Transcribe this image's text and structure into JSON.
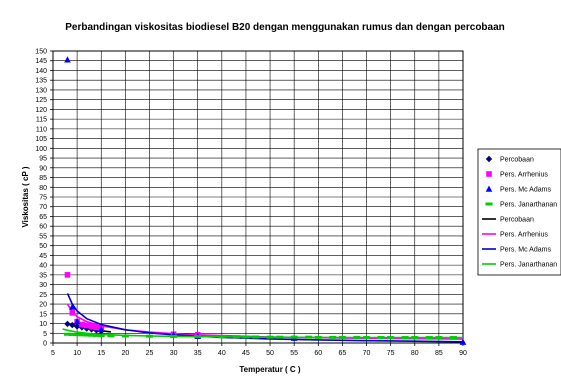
{
  "chart_data": {
    "type": "line",
    "title": "Perbandingan viskositas biodiesel B20 dengan menggunakan rumus dan dengan percobaan",
    "xlabel": "Temperatur ( C )",
    "ylabel": "Viskositas ( cP )",
    "xlim": [
      5,
      90
    ],
    "ylim": [
      0,
      150
    ],
    "x_ticks": [
      "5",
      "10",
      "15",
      "20",
      "25",
      "30",
      "35",
      "40",
      "45",
      "50",
      "55",
      "60",
      "65",
      "70",
      "75",
      "80",
      "85",
      "90"
    ],
    "y_ticks": [
      "0",
      "5",
      "10",
      "15",
      "20",
      "25",
      "30",
      "35",
      "40",
      "45",
      "50",
      "55",
      "60",
      "65",
      "70",
      "75",
      "80",
      "85",
      "90",
      "95",
      "100",
      "105",
      "110",
      "115",
      "120",
      "125",
      "130",
      "135",
      "140",
      "145",
      "150"
    ],
    "grid": true,
    "legend_position": "right",
    "series": [
      {
        "name": "Percobaan",
        "kind": "markers",
        "marker": "diamond",
        "color": "#000080",
        "points": [
          [
            8,
            9.8
          ],
          [
            9,
            9.2
          ],
          [
            10,
            8.5
          ],
          [
            11,
            8.0
          ],
          [
            12,
            7.4
          ],
          [
            13,
            7.0
          ],
          [
            14,
            6.5
          ],
          [
            15,
            6.1
          ]
        ]
      },
      {
        "name": "Pers. Arrhenius",
        "kind": "markers",
        "marker": "square",
        "color": "#ff00ff",
        "points": [
          [
            8,
            35
          ],
          [
            9,
            15.5
          ],
          [
            10,
            11
          ],
          [
            11,
            9.5
          ],
          [
            12,
            9
          ],
          [
            13,
            8.5
          ],
          [
            14,
            8
          ],
          [
            15,
            7.5
          ],
          [
            30,
            4.5
          ],
          [
            35,
            4.2
          ]
        ]
      },
      {
        "name": "Pers. Mc Adams",
        "kind": "markers",
        "marker": "triangle",
        "color": "#0000ff",
        "points": [
          [
            8,
            145.5
          ],
          [
            9,
            18.5
          ],
          [
            10,
            11
          ],
          [
            15,
            7
          ],
          [
            30,
            4.2
          ],
          [
            35,
            3.5
          ],
          [
            55,
            2.5
          ],
          [
            90,
            0.5
          ]
        ]
      },
      {
        "name": "Pers. Janarthanan",
        "kind": "markers",
        "marker": "dash",
        "color": "#00cc00",
        "points": [
          [
            8,
            4.5
          ],
          [
            9,
            4.4
          ],
          [
            10,
            4.3
          ],
          [
            11,
            4.2
          ],
          [
            12,
            4.1
          ],
          [
            13,
            4.0
          ],
          [
            14,
            3.9
          ],
          [
            15,
            3.8
          ],
          [
            17,
            3.7
          ],
          [
            20,
            3.6
          ],
          [
            25,
            3.5
          ],
          [
            30,
            3.4
          ],
          [
            35,
            3.3
          ],
          [
            40,
            3.2
          ],
          [
            43,
            3.2
          ],
          [
            45,
            3.1
          ],
          [
            47,
            3.1
          ],
          [
            50,
            3.0
          ],
          [
            52,
            3.0
          ],
          [
            55,
            3.0
          ],
          [
            58,
            3.0
          ],
          [
            60,
            2.9
          ],
          [
            63,
            2.9
          ],
          [
            65,
            2.9
          ],
          [
            68,
            2.9
          ],
          [
            70,
            2.8
          ],
          [
            73,
            2.8
          ],
          [
            75,
            2.8
          ],
          [
            78,
            2.8
          ],
          [
            80,
            2.8
          ],
          [
            83,
            2.8
          ],
          [
            85,
            2.8
          ],
          [
            88,
            2.8
          ]
        ]
      },
      {
        "name": "Percobaan",
        "kind": "line",
        "color": "#000000",
        "points": [
          [
            8,
            9.8
          ],
          [
            9,
            9.2
          ],
          [
            10,
            8.6
          ],
          [
            11,
            8.1
          ],
          [
            12,
            7.6
          ],
          [
            13,
            7.1
          ],
          [
            14,
            6.7
          ],
          [
            15,
            6.3
          ],
          [
            16,
            6.0
          ],
          [
            17,
            5.7
          ]
        ]
      },
      {
        "name": "Pers. Arrhenius",
        "kind": "line",
        "color": "#ff00ff",
        "points": [
          [
            8,
            20
          ],
          [
            9,
            16
          ],
          [
            10,
            13.5
          ],
          [
            12,
            11
          ],
          [
            15,
            8.8
          ],
          [
            20,
            6.8
          ],
          [
            25,
            5.6
          ],
          [
            30,
            4.8
          ],
          [
            35,
            4.2
          ],
          [
            40,
            3.8
          ],
          [
            50,
            3.1
          ],
          [
            60,
            2.7
          ],
          [
            70,
            2.4
          ],
          [
            80,
            2.2
          ],
          [
            90,
            2.0
          ]
        ]
      },
      {
        "name": "Pers. Mc Adams",
        "kind": "line",
        "color": "#0000cc",
        "points": [
          [
            8,
            25.5
          ],
          [
            9,
            20
          ],
          [
            10,
            16.5
          ],
          [
            12,
            12.5
          ],
          [
            15,
            9.5
          ],
          [
            20,
            6.8
          ],
          [
            25,
            5.2
          ],
          [
            30,
            4.2
          ],
          [
            35,
            3.5
          ],
          [
            40,
            2.9
          ],
          [
            50,
            2.1
          ],
          [
            60,
            1.6
          ],
          [
            70,
            1.2
          ],
          [
            80,
            0.9
          ],
          [
            90,
            0.6
          ]
        ]
      },
      {
        "name": "Pers. Janarthanan",
        "kind": "line",
        "color": "#00cc00",
        "points": [
          [
            7,
            7.2
          ],
          [
            8,
            6.5
          ],
          [
            10,
            5.6
          ],
          [
            12,
            5.0
          ],
          [
            15,
            4.4
          ],
          [
            20,
            3.9
          ],
          [
            25,
            3.6
          ],
          [
            30,
            3.4
          ],
          [
            40,
            3.2
          ],
          [
            50,
            3.0
          ],
          [
            60,
            2.9
          ],
          [
            70,
            2.8
          ],
          [
            80,
            2.8
          ],
          [
            90,
            2.8
          ]
        ]
      }
    ]
  }
}
